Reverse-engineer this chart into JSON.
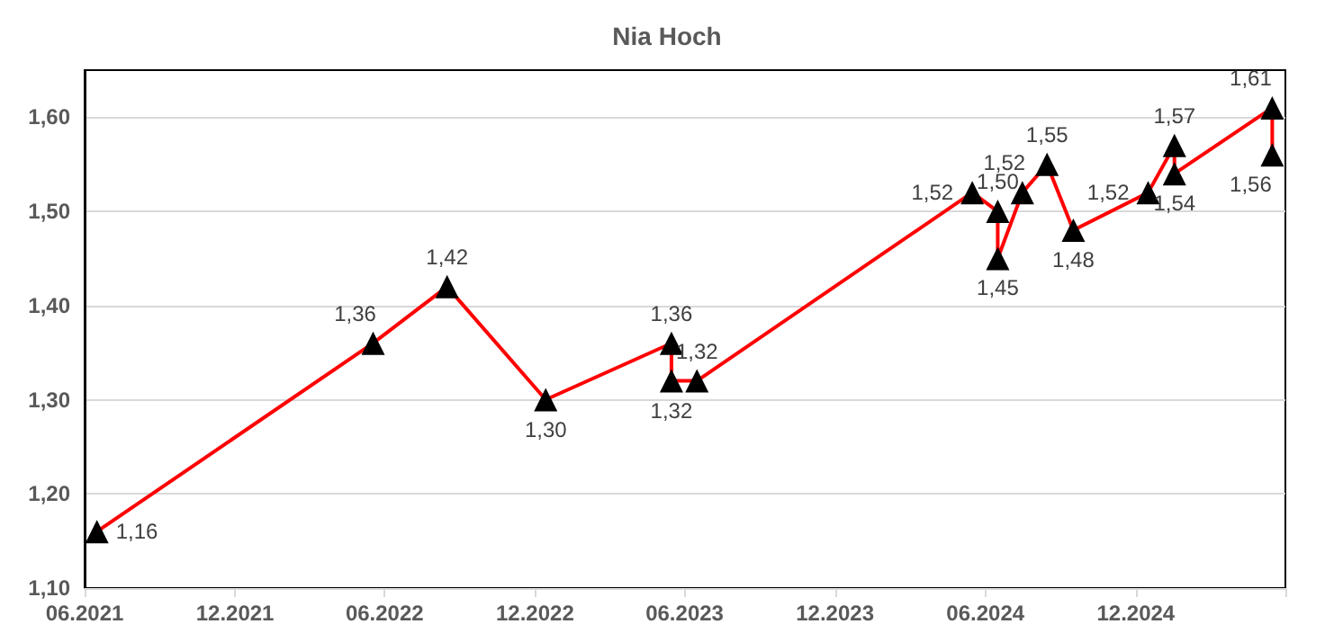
{
  "chart_data": {
    "type": "line",
    "title": "Nia Hoch",
    "x": [
      "2021-06-16",
      "2022-05-18",
      "2022-08-16",
      "2022-12-14",
      "2023-05-16",
      "2023-05-16",
      "2023-06-16",
      "2024-05-16",
      "2024-06-16",
      "2024-06-16",
      "2024-07-16",
      "2024-08-15",
      "2024-09-16",
      "2024-12-16",
      "2025-01-17",
      "2025-01-17",
      "2025-05-16",
      "2025-05-16"
    ],
    "series": [
      {
        "color": "#ff0000",
        "values": [
          1.16,
          1.36,
          1.42,
          1.3,
          1.36,
          1.32,
          1.32,
          1.52,
          1.5,
          1.45,
          1.52,
          1.55,
          1.48,
          1.52,
          1.57,
          1.54,
          1.61,
          1.56
        ],
        "value_labels": [
          "1,16",
          "1,36",
          "1,42",
          "1,30",
          "1,36",
          "1,32",
          "1,32",
          "1,52",
          "1,50",
          "1,45",
          "1,52",
          "1,55",
          "1,48",
          "1,52",
          "1,57",
          "1,54",
          "1,61",
          "1,56"
        ]
      }
    ],
    "marker": "triangle",
    "grid": "y",
    "xlim": [
      "2021-06",
      "2025-06"
    ],
    "xticks": [
      {
        "value": "2021-06",
        "label": "06.2021"
      },
      {
        "value": "2021-12",
        "label": "12.2021"
      },
      {
        "value": "2022-06",
        "label": "06.2022"
      },
      {
        "value": "2022-12",
        "label": "12.2022"
      },
      {
        "value": "2023-06",
        "label": "06.2023"
      },
      {
        "value": "2023-12",
        "label": "12.2023"
      },
      {
        "value": "2024-06",
        "label": "06.2024"
      },
      {
        "value": "2024-12",
        "label": "12.2024"
      },
      {
        "value": "2025-06",
        "label": null
      }
    ],
    "ylim": [
      1.1,
      1.65
    ],
    "yticks": [
      {
        "value": 1.1,
        "label": "1,10"
      },
      {
        "value": 1.2,
        "label": "1,20"
      },
      {
        "value": 1.3,
        "label": "1,30"
      },
      {
        "value": 1.4,
        "label": "1,40"
      },
      {
        "value": 1.5,
        "label": "1,50"
      },
      {
        "value": 1.6,
        "label": "1,60"
      }
    ]
  }
}
